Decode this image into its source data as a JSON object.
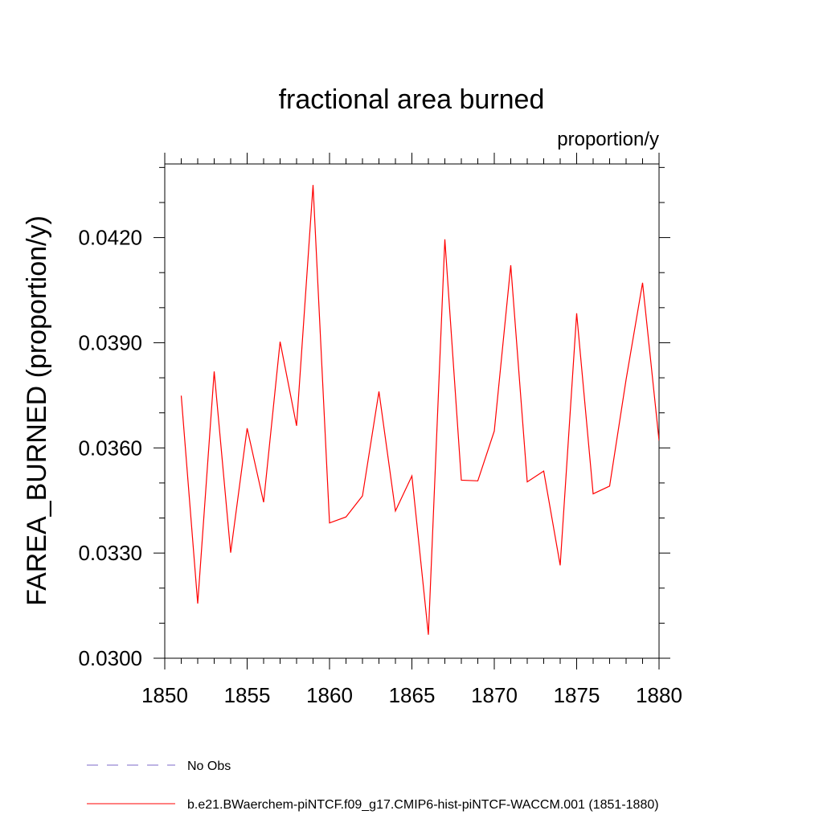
{
  "chart_data": {
    "type": "line",
    "title": "fractional area burned",
    "subtitle": "proportion/y",
    "ylabel": "FAREA_BURNED  (proportion/y)",
    "xlabel": "",
    "xlim": [
      1850,
      1880
    ],
    "ylim": [
      0.03,
      0.0441
    ],
    "x_ticks": [
      1850,
      1855,
      1860,
      1865,
      1870,
      1875,
      1880
    ],
    "x_tick_labels": [
      "1850",
      "1855",
      "1860",
      "1865",
      "1870",
      "1875",
      "1880"
    ],
    "y_ticks": [
      0.03,
      0.033,
      0.036,
      0.039,
      0.042
    ],
    "y_tick_labels": [
      "0.0300",
      "0.0330",
      "0.0360",
      "0.0390",
      "0.0420"
    ],
    "grid": false,
    "legend_position": "bottom",
    "series": [
      {
        "name": "b.e21.BWaerchem-piNTCF.f09_g17.CMIP6-hist-piNTCF-WACCM.001 (1851-1880)",
        "color": "#ff0000",
        "style": "solid",
        "x": [
          1851,
          1852,
          1853,
          1854,
          1855,
          1856,
          1857,
          1858,
          1859,
          1860,
          1861,
          1862,
          1863,
          1864,
          1865,
          1866,
          1867,
          1868,
          1869,
          1870,
          1871,
          1872,
          1873,
          1874,
          1875,
          1876,
          1877,
          1878,
          1879,
          1880
        ],
        "values": [
          0.03749,
          0.03156,
          0.03818,
          0.03301,
          0.03656,
          0.03445,
          0.03903,
          0.03663,
          0.0435,
          0.03386,
          0.03403,
          0.03463,
          0.03761,
          0.0342,
          0.0352,
          0.03067,
          0.04195,
          0.03508,
          0.03506,
          0.03648,
          0.04121,
          0.03503,
          0.03534,
          0.03265,
          0.03984,
          0.03469,
          0.03491,
          0.03795,
          0.04071,
          0.03621
        ]
      }
    ],
    "legend": [
      {
        "label": "No Obs",
        "color": "#7b68c8",
        "style": "dashed"
      },
      {
        "label": "b.e21.BWaerchem-piNTCF.f09_g17.CMIP6-hist-piNTCF-WACCM.001 (1851-1880)",
        "color": "#ff0000",
        "style": "solid"
      }
    ]
  }
}
